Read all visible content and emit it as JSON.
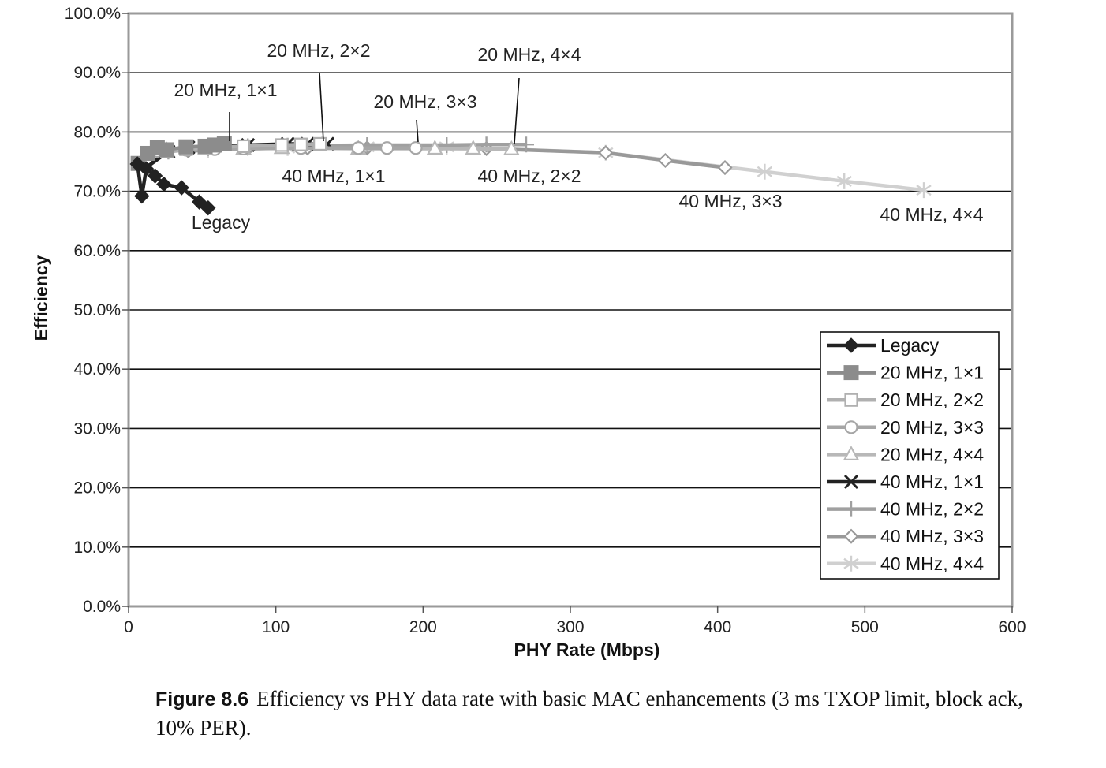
{
  "chart_data": {
    "type": "line",
    "xlabel": "PHY Rate (Mbps)",
    "ylabel": "Efficiency",
    "xlim": [
      0,
      600
    ],
    "ylim": [
      0,
      100
    ],
    "x_ticks": [
      "0",
      "100",
      "200",
      "300",
      "400",
      "500",
      "600"
    ],
    "y_ticks": [
      "0.0%",
      "10.0%",
      "20.0%",
      "30.0%",
      "40.0%",
      "50.0%",
      "60.0%",
      "70.0%",
      "80.0%",
      "90.0%",
      "100.0%"
    ],
    "grid": "horizontal",
    "legend_position": "lower-right",
    "series": [
      {
        "name": "Legacy",
        "color": "#222222",
        "marker": "diamond-filled",
        "x": [
          6,
          9,
          12,
          18,
          24,
          36,
          48,
          54
        ],
        "y": [
          74.6,
          69.2,
          73.8,
          72.6,
          71.2,
          70.6,
          68.2,
          67.2
        ]
      },
      {
        "name": "20 MHz, 1×1",
        "color": "#8c8c8c",
        "marker": "square-filled",
        "x": [
          6.5,
          13,
          19.5,
          26,
          39,
          52,
          58.5,
          65
        ],
        "y": [
          74.7,
          76.4,
          77.4,
          77.0,
          77.5,
          77.6,
          77.8,
          78.0
        ]
      },
      {
        "name": "20 MHz, 2×2",
        "color": "#b0b0b0",
        "marker": "square-open",
        "x": [
          13,
          26,
          39,
          52,
          78,
          104,
          117,
          130
        ],
        "y": [
          76.3,
          76.7,
          77.1,
          77.4,
          77.6,
          77.8,
          77.9,
          78.0
        ]
      },
      {
        "name": "20 MHz, 3×3",
        "color": "#a6a6a6",
        "marker": "circle-open",
        "x": [
          19.5,
          39,
          58.5,
          78,
          117,
          156,
          175.5,
          195
        ],
        "y": [
          76.8,
          77.0,
          77.1,
          77.2,
          77.3,
          77.3,
          77.3,
          77.3
        ]
      },
      {
        "name": "20 MHz, 4×4",
        "color": "#b8b8b8",
        "marker": "triangle-open",
        "x": [
          26,
          52,
          78,
          104,
          156,
          208,
          234,
          260
        ],
        "y": [
          76.9,
          77.1,
          77.2,
          77.3,
          77.2,
          77.2,
          77.2,
          77.1
        ]
      },
      {
        "name": "40 MHz, 1×1",
        "color": "#222222",
        "marker": "x",
        "x": [
          13.5,
          27,
          40.5,
          54,
          81,
          108,
          121.5,
          135
        ],
        "y": [
          74.3,
          76.7,
          77.4,
          77.6,
          77.8,
          78.0,
          78.0,
          78.0
        ]
      },
      {
        "name": "40 MHz, 2×2",
        "color": "#a0a0a0",
        "marker": "plus",
        "x": [
          27,
          54,
          81,
          108,
          162,
          216,
          243,
          270
        ],
        "y": [
          76.7,
          77.3,
          77.6,
          77.7,
          77.8,
          77.8,
          77.9,
          77.9
        ]
      },
      {
        "name": "40 MHz, 3×3",
        "color": "#999999",
        "marker": "diamond-open",
        "x": [
          40.5,
          81,
          121.5,
          162,
          243,
          324,
          364.5,
          405
        ],
        "y": [
          76.8,
          77.2,
          77.3,
          77.3,
          77.2,
          76.5,
          75.2,
          74.0
        ]
      },
      {
        "name": "40 MHz, 4×4",
        "color": "#d0d0d0",
        "marker": "asterisk",
        "x": [
          54,
          108,
          162,
          216,
          324,
          432,
          486,
          540
        ],
        "y": [
          77.0,
          77.3,
          77.5,
          77.5,
          76.5,
          73.3,
          71.7,
          70.2
        ]
      }
    ],
    "annotations": [
      {
        "text": "20 MHz, 2×2",
        "leader": true,
        "target": [
          131,
          78.0
        ]
      },
      {
        "text": "20 MHz, 4×4",
        "leader": true,
        "target": [
          261,
          77.3
        ]
      },
      {
        "text": "20 MHz, 1×1",
        "leader": true,
        "target": [
          69,
          78.0
        ]
      },
      {
        "text": "20 MHz, 3×3",
        "leader": true,
        "target": [
          195,
          77.3
        ]
      },
      {
        "text": "40 MHz, 1×1",
        "leader": false
      },
      {
        "text": "40 MHz, 2×2",
        "leader": false
      },
      {
        "text": "Legacy",
        "leader": false
      },
      {
        "text": "40 MHz, 3×3",
        "leader": false
      },
      {
        "text": "40 MHz, 4×4",
        "leader": false
      }
    ]
  },
  "caption": {
    "label": "Figure 8.6",
    "text": "Efficiency vs PHY data rate with basic MAC enhancements (3 ms TXOP limit, block ack, 10% PER)."
  }
}
